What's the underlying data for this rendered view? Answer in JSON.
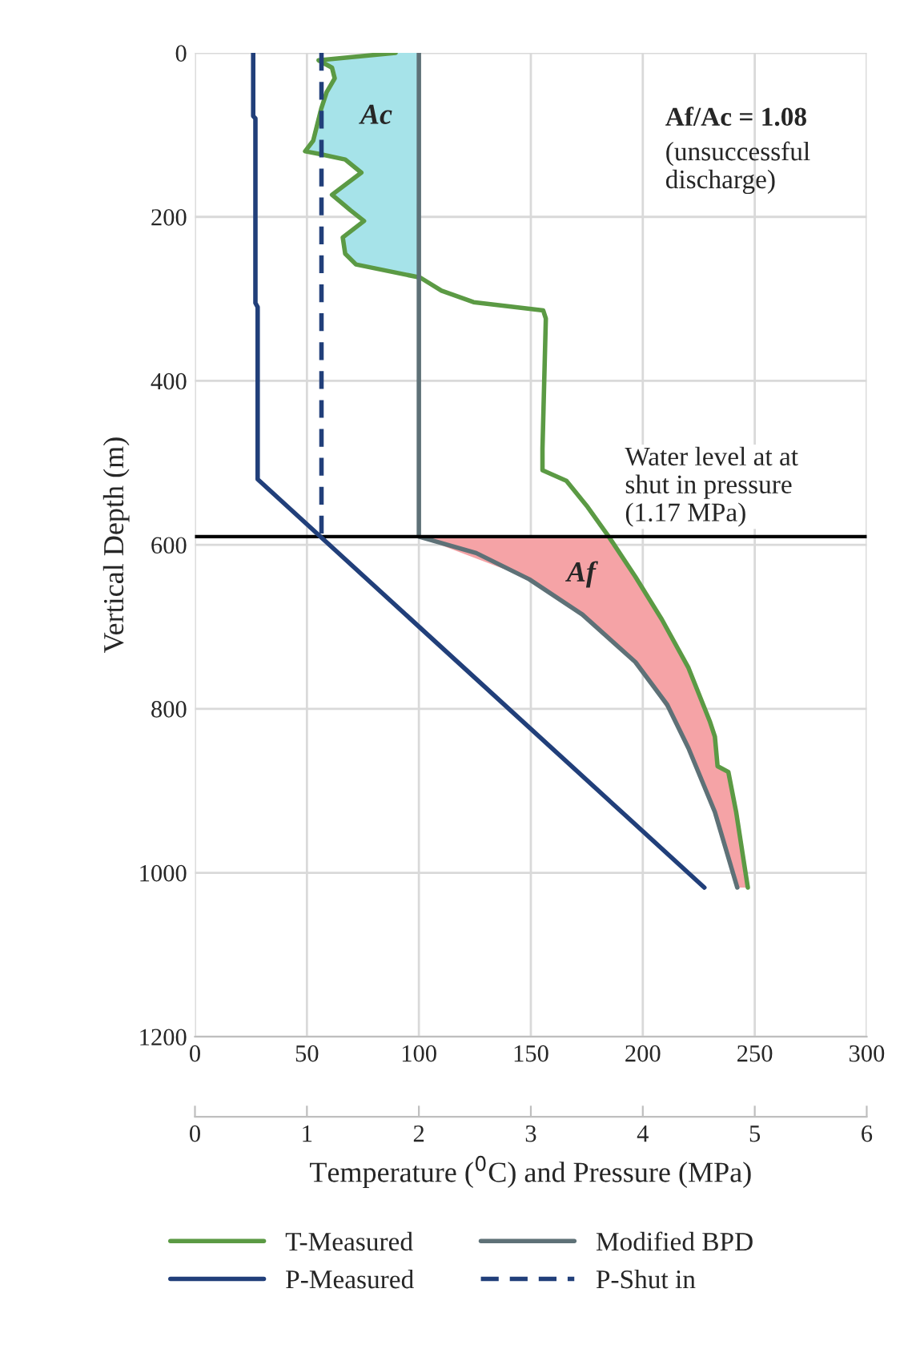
{
  "chart_data": {
    "type": "line",
    "xlabel": "Temperature ($^{0}$C) and Pressure (MPa)",
    "ylabel": "Vertical Depth (m)",
    "xlim": [
      0,
      300
    ],
    "xticks": [
      0,
      50,
      100,
      150,
      200,
      250,
      300
    ],
    "x2lim": [
      0,
      6
    ],
    "x2ticks": [
      0,
      1,
      2,
      3,
      4,
      5,
      6
    ],
    "ylim": [
      1200,
      0
    ],
    "yticks": [
      0,
      200,
      400,
      600,
      800,
      1000,
      1200
    ],
    "grid": true,
    "legend": "bottom",
    "series": [
      {
        "name": "T-Measured",
        "color": "#5b9a44",
        "x": [
          89.6,
          55.2,
          61.2,
          62.4,
          58.8,
          56.4,
          52.8,
          49.2,
          55.2,
          67.1,
          74.3,
          61.2,
          69.5,
          75.5,
          66,
          67.1,
          71.9,
          100.6,
          110.1,
          124.4,
          155.5,
          156.7,
          155.2,
          155.2,
          165.9,
          175.4,
          184.8,
          196.7,
          208.5,
          220.4,
          229.9,
          232.2,
          233.4,
          238.2,
          241.7,
          246.9
        ],
        "values": [
          0,
          9,
          18,
          31,
          48,
          68,
          107,
          120,
          123,
          130,
          146,
          173,
          192,
          205,
          225,
          245,
          258,
          274,
          290,
          304,
          314,
          324,
          483,
          509,
          522,
          554,
          590,
          639,
          691,
          750,
          815,
          834,
          870,
          877,
          926,
          1018
        ]
      },
      {
        "name": "Modified BPD",
        "color": "#5e7177",
        "x": [
          100,
          100,
          125.6,
          149.3,
          173,
          196.7,
          210.9,
          220.4,
          232.2,
          242.2
        ],
        "values": [
          0,
          590,
          610,
          642,
          685,
          743,
          795,
          848,
          926,
          1018
        ]
      },
      {
        "name": "P-Measured",
        "color": "#213f7a",
        "axis": "x2",
        "x": [
          0.52,
          0.52,
          0.54,
          0.54,
          0.56,
          0.56,
          4.55
        ],
        "values": [
          0,
          77,
          80,
          305,
          310,
          520,
          1018
        ]
      },
      {
        "name": "P-Shut in",
        "color": "#213f7a",
        "axis": "x2",
        "line_style": "dashed",
        "x": [
          1.13,
          1.13
        ],
        "values": [
          0,
          590
        ]
      }
    ],
    "ref_lines": [
      {
        "axis": "y",
        "value": 590,
        "label": "Water level at at\nshut in pressure\n(1.17 MPa)",
        "color": "#000000"
      }
    ],
    "annotations": [
      "Ac",
      "Af",
      "Af/Ac = 1.08",
      "(unsuccessful\ndischarge)"
    ]
  }
}
